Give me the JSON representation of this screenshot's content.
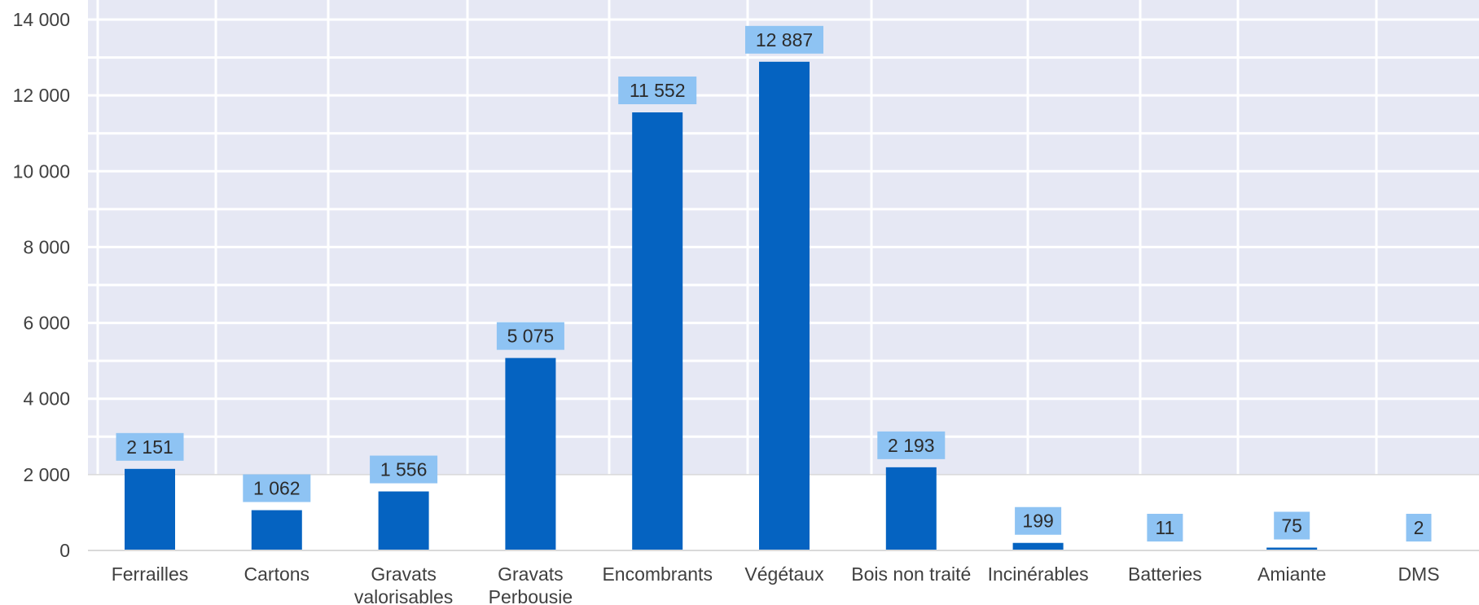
{
  "chart_data": {
    "type": "bar",
    "title": "",
    "xlabel": "",
    "ylabel": "",
    "categories": [
      [
        "Ferrailles"
      ],
      [
        "Cartons"
      ],
      [
        "Gravats",
        "valorisables"
      ],
      [
        "Gravats",
        "Perbousie"
      ],
      [
        "Encombrants"
      ],
      [
        "Végétaux"
      ],
      [
        "Bois non traité"
      ],
      [
        "Incinérables"
      ],
      [
        "Batteries"
      ],
      [
        "Amiante"
      ],
      [
        "DMS"
      ]
    ],
    "values": [
      2151,
      1062,
      1556,
      5075,
      11552,
      12887,
      2193,
      199,
      11,
      75,
      2
    ],
    "data_labels": [
      "2 151",
      "1 062",
      "1 556",
      "5 075",
      "11 552",
      "12 887",
      "2 193",
      "199",
      "11",
      "75",
      "2"
    ],
    "y_ticks": [
      0,
      2000,
      4000,
      6000,
      8000,
      10000,
      12000,
      14000
    ],
    "y_tick_labels": [
      "0",
      "2 000",
      "4 000",
      "6 000",
      "8 000",
      "10 000",
      "12 000",
      "14 000"
    ],
    "ylim": [
      0,
      14000
    ],
    "grid": true,
    "legend": "none",
    "colors": {
      "bar": "#0563C1",
      "label_bg": "#8EC3F3",
      "grid_bg": "#E6E8F4",
      "grid_line": "#FFFFFF",
      "axis_line": "#D9D9D9",
      "text": "#404040"
    }
  }
}
